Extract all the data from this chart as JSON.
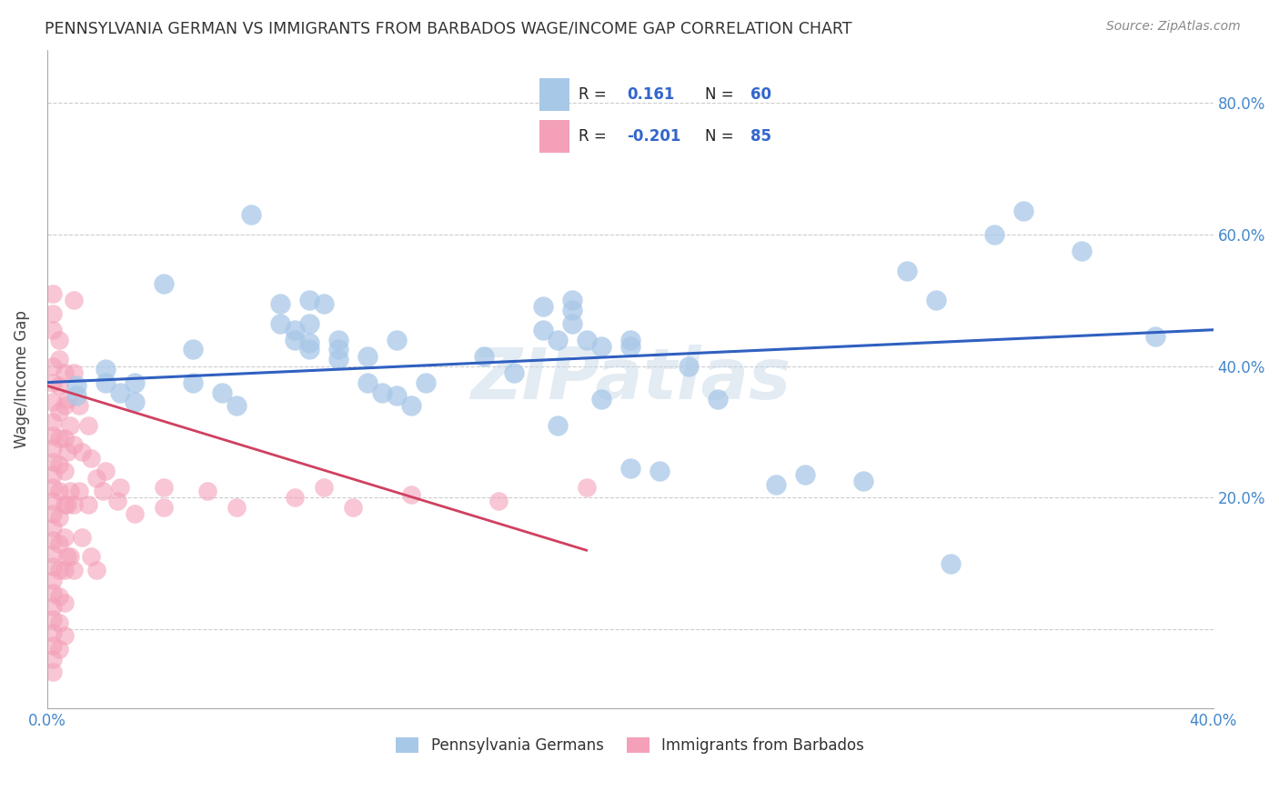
{
  "title": "PENNSYLVANIA GERMAN VS IMMIGRANTS FROM BARBADOS WAGE/INCOME GAP CORRELATION CHART",
  "source": "Source: ZipAtlas.com",
  "xlabel_blue": "Pennsylvania Germans",
  "xlabel_pink": "Immigrants from Barbados",
  "ylabel": "Wage/Income Gap",
  "xlim": [
    0.0,
    0.4
  ],
  "ylim": [
    -0.12,
    0.88
  ],
  "yticks": [
    0.0,
    0.2,
    0.4,
    0.6,
    0.8
  ],
  "xticks": [
    0.0,
    0.4
  ],
  "xtick_labels": [
    "0.0%",
    "40.0%"
  ],
  "ytick_labels_right": [
    "",
    "20.0%",
    "40.0%",
    "60.0%",
    "80.0%"
  ],
  "legend_R_blue": "R =   0.161",
  "legend_N_blue": "N = 60",
  "legend_R_pink": "R = -0.201",
  "legend_N_pink": "N = 85",
  "blue_color": "#a8c8e8",
  "pink_color": "#f4a0b8",
  "blue_line_color": "#3060c0",
  "pink_line_color": "#d04060",
  "blue_scatter": [
    [
      0.01,
      0.37
    ],
    [
      0.01,
      0.355
    ],
    [
      0.02,
      0.395
    ],
    [
      0.02,
      0.375
    ],
    [
      0.025,
      0.36
    ],
    [
      0.03,
      0.375
    ],
    [
      0.03,
      0.345
    ],
    [
      0.04,
      0.525
    ],
    [
      0.05,
      0.425
    ],
    [
      0.05,
      0.375
    ],
    [
      0.06,
      0.36
    ],
    [
      0.065,
      0.34
    ],
    [
      0.07,
      0.63
    ],
    [
      0.08,
      0.495
    ],
    [
      0.08,
      0.465
    ],
    [
      0.085,
      0.455
    ],
    [
      0.085,
      0.44
    ],
    [
      0.09,
      0.5
    ],
    [
      0.09,
      0.465
    ],
    [
      0.09,
      0.435
    ],
    [
      0.09,
      0.425
    ],
    [
      0.095,
      0.495
    ],
    [
      0.1,
      0.44
    ],
    [
      0.1,
      0.425
    ],
    [
      0.1,
      0.41
    ],
    [
      0.11,
      0.415
    ],
    [
      0.11,
      0.375
    ],
    [
      0.115,
      0.36
    ],
    [
      0.12,
      0.44
    ],
    [
      0.12,
      0.355
    ],
    [
      0.125,
      0.34
    ],
    [
      0.13,
      0.375
    ],
    [
      0.15,
      0.415
    ],
    [
      0.16,
      0.39
    ],
    [
      0.17,
      0.49
    ],
    [
      0.17,
      0.455
    ],
    [
      0.175,
      0.44
    ],
    [
      0.175,
      0.31
    ],
    [
      0.18,
      0.5
    ],
    [
      0.18,
      0.485
    ],
    [
      0.18,
      0.465
    ],
    [
      0.185,
      0.44
    ],
    [
      0.19,
      0.43
    ],
    [
      0.19,
      0.35
    ],
    [
      0.2,
      0.44
    ],
    [
      0.2,
      0.43
    ],
    [
      0.2,
      0.245
    ],
    [
      0.21,
      0.24
    ],
    [
      0.22,
      0.4
    ],
    [
      0.23,
      0.35
    ],
    [
      0.25,
      0.22
    ],
    [
      0.26,
      0.235
    ],
    [
      0.28,
      0.225
    ],
    [
      0.295,
      0.545
    ],
    [
      0.305,
      0.5
    ],
    [
      0.31,
      0.1
    ],
    [
      0.325,
      0.6
    ],
    [
      0.335,
      0.635
    ],
    [
      0.355,
      0.575
    ],
    [
      0.38,
      0.445
    ]
  ],
  "pink_scatter": [
    [
      0.002,
      0.51
    ],
    [
      0.002,
      0.48
    ],
    [
      0.002,
      0.455
    ],
    [
      0.002,
      0.4
    ],
    [
      0.002,
      0.375
    ],
    [
      0.002,
      0.345
    ],
    [
      0.002,
      0.315
    ],
    [
      0.002,
      0.295
    ],
    [
      0.002,
      0.275
    ],
    [
      0.002,
      0.255
    ],
    [
      0.002,
      0.235
    ],
    [
      0.002,
      0.215
    ],
    [
      0.002,
      0.195
    ],
    [
      0.002,
      0.175
    ],
    [
      0.002,
      0.155
    ],
    [
      0.002,
      0.135
    ],
    [
      0.002,
      0.115
    ],
    [
      0.002,
      0.095
    ],
    [
      0.002,
      0.075
    ],
    [
      0.002,
      0.055
    ],
    [
      0.002,
      0.035
    ],
    [
      0.002,
      0.015
    ],
    [
      0.002,
      -0.005
    ],
    [
      0.002,
      -0.025
    ],
    [
      0.002,
      -0.045
    ],
    [
      0.002,
      -0.065
    ],
    [
      0.004,
      0.44
    ],
    [
      0.004,
      0.41
    ],
    [
      0.004,
      0.37
    ],
    [
      0.004,
      0.33
    ],
    [
      0.004,
      0.29
    ],
    [
      0.004,
      0.25
    ],
    [
      0.004,
      0.21
    ],
    [
      0.004,
      0.17
    ],
    [
      0.004,
      0.13
    ],
    [
      0.004,
      0.09
    ],
    [
      0.004,
      0.05
    ],
    [
      0.004,
      0.01
    ],
    [
      0.004,
      -0.03
    ],
    [
      0.006,
      0.39
    ],
    [
      0.006,
      0.34
    ],
    [
      0.006,
      0.29
    ],
    [
      0.006,
      0.24
    ],
    [
      0.006,
      0.19
    ],
    [
      0.006,
      0.14
    ],
    [
      0.006,
      0.09
    ],
    [
      0.006,
      0.04
    ],
    [
      0.006,
      -0.01
    ],
    [
      0.007,
      0.35
    ],
    [
      0.007,
      0.27
    ],
    [
      0.007,
      0.19
    ],
    [
      0.007,
      0.11
    ],
    [
      0.008,
      0.31
    ],
    [
      0.008,
      0.21
    ],
    [
      0.008,
      0.11
    ],
    [
      0.009,
      0.5
    ],
    [
      0.009,
      0.39
    ],
    [
      0.009,
      0.28
    ],
    [
      0.009,
      0.19
    ],
    [
      0.009,
      0.09
    ],
    [
      0.011,
      0.34
    ],
    [
      0.011,
      0.21
    ],
    [
      0.012,
      0.27
    ],
    [
      0.012,
      0.14
    ],
    [
      0.014,
      0.31
    ],
    [
      0.014,
      0.19
    ],
    [
      0.015,
      0.26
    ],
    [
      0.015,
      0.11
    ],
    [
      0.017,
      0.23
    ],
    [
      0.017,
      0.09
    ],
    [
      0.019,
      0.21
    ],
    [
      0.02,
      0.24
    ],
    [
      0.024,
      0.195
    ],
    [
      0.025,
      0.215
    ],
    [
      0.03,
      0.175
    ],
    [
      0.04,
      0.215
    ],
    [
      0.04,
      0.185
    ],
    [
      0.055,
      0.21
    ],
    [
      0.065,
      0.185
    ],
    [
      0.085,
      0.2
    ],
    [
      0.095,
      0.215
    ],
    [
      0.105,
      0.185
    ],
    [
      0.125,
      0.205
    ],
    [
      0.155,
      0.195
    ],
    [
      0.185,
      0.215
    ]
  ],
  "blue_line_x": [
    0.0,
    0.4
  ],
  "blue_line_y": [
    0.375,
    0.455
  ],
  "pink_line_x": [
    0.0,
    0.185
  ],
  "pink_line_y": [
    0.37,
    0.12
  ],
  "watermark": "ZIPatlas",
  "bg_color": "#ffffff",
  "grid_color": "#cccccc"
}
